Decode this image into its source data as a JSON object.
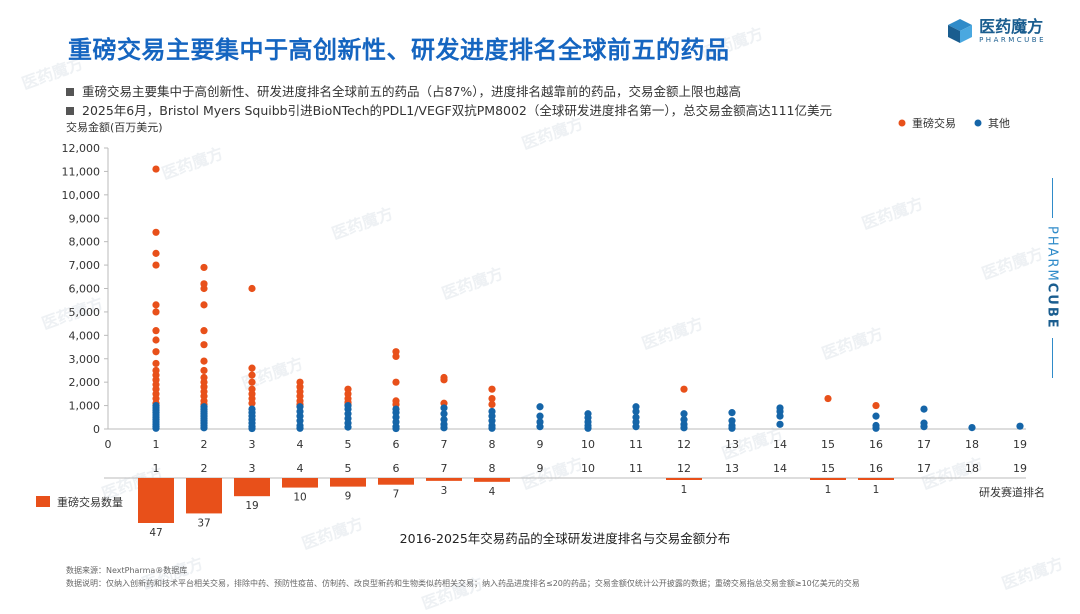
{
  "title": "重磅交易主要集中于高创新性、研发进度排名全球前五的药品",
  "logo": {
    "name": "医药魔方",
    "sub": "PHARMCUBE"
  },
  "bullets": [
    "重磅交易主要集中于高创新性、研发进度排名全球前五的药品（占87%），进度排名越靠前的药品，交易金额上限也越高",
    "2025年6月，Bristol Myers Squibb引进BioNTech的PDL1/VEGF双抗PM8002（全球研发进度排名第一），总交易金额高达111亿美元"
  ],
  "side_brand": {
    "pre": "PHARM",
    "bold": "CUBE"
  },
  "watermark": "医药魔方",
  "footer": {
    "source": "数据来源：NextPharma®数据库",
    "note": "数据说明：仅纳入创新药和技术平台相关交易，排除中药、预防性疫苗、仿制药、改良型新药和生物类似药相关交易；纳入药品进度排名≤20的药品；交易金额仅统计公开披露的数据；重磅交易指总交易金额≥10亿美元的交易"
  },
  "colors": {
    "major": "#e8501a",
    "other": "#1565a8",
    "title": "#1565c0",
    "axis": "#bbbbbb"
  },
  "chart_data": {
    "type": "scatter",
    "title": "2016-2025年交易药品的全球研发进度排名与交易金额分布",
    "ylabel": "交易金额(百万美元)",
    "xlabel": "研发赛道排名",
    "ylim": [
      0,
      12000
    ],
    "yticks": [
      0,
      1000,
      2000,
      3000,
      4000,
      5000,
      6000,
      7000,
      8000,
      9000,
      10000,
      11000,
      12000
    ],
    "ytick_labels": [
      "0",
      "1,000",
      "2,000",
      "3,000",
      "4,000",
      "5,000",
      "6,000",
      "7,000",
      "8,000",
      "9,000",
      "10,000",
      "11,000",
      "12,000"
    ],
    "xlim": [
      0,
      19
    ],
    "xticks": [
      "0",
      "1",
      "2",
      "3",
      "4",
      "5",
      "6",
      "7",
      "8",
      "9",
      "10",
      "11",
      "12",
      "13",
      "14",
      "15",
      "16",
      "17",
      "18",
      "19"
    ],
    "legend": [
      {
        "name": "重磅交易",
        "color": "#e8501a"
      },
      {
        "name": "其他",
        "color": "#1565a8"
      }
    ],
    "scatter_series": [
      {
        "name": "重磅交易",
        "color": "#e8501a",
        "points": [
          [
            1,
            11100
          ],
          [
            1,
            8400
          ],
          [
            1,
            7500
          ],
          [
            1,
            7000
          ],
          [
            1,
            5300
          ],
          [
            1,
            5000
          ],
          [
            1,
            4200
          ],
          [
            1,
            3800
          ],
          [
            1,
            3300
          ],
          [
            1,
            2800
          ],
          [
            1,
            2500
          ],
          [
            1,
            2300
          ],
          [
            1,
            2100
          ],
          [
            1,
            1900
          ],
          [
            1,
            1700
          ],
          [
            1,
            1500
          ],
          [
            1,
            1300
          ],
          [
            1,
            1100
          ],
          [
            2,
            6900
          ],
          [
            2,
            6200
          ],
          [
            2,
            6000
          ],
          [
            2,
            5300
          ],
          [
            2,
            4200
          ],
          [
            2,
            3600
          ],
          [
            2,
            2900
          ],
          [
            2,
            2500
          ],
          [
            2,
            2200
          ],
          [
            2,
            2000
          ],
          [
            2,
            1800
          ],
          [
            2,
            1600
          ],
          [
            2,
            1400
          ],
          [
            2,
            1200
          ],
          [
            2,
            1050
          ],
          [
            3,
            6000
          ],
          [
            3,
            2600
          ],
          [
            3,
            2300
          ],
          [
            3,
            2000
          ],
          [
            3,
            1700
          ],
          [
            3,
            1500
          ],
          [
            3,
            1300
          ],
          [
            3,
            1100
          ],
          [
            4,
            2000
          ],
          [
            4,
            1800
          ],
          [
            4,
            1600
          ],
          [
            4,
            1400
          ],
          [
            4,
            1200
          ],
          [
            4,
            1050
          ],
          [
            5,
            1700
          ],
          [
            5,
            1500
          ],
          [
            5,
            1300
          ],
          [
            5,
            1150
          ],
          [
            5,
            1050
          ],
          [
            6,
            3300
          ],
          [
            6,
            3100
          ],
          [
            6,
            2000
          ],
          [
            6,
            1200
          ],
          [
            6,
            1050
          ],
          [
            7,
            2200
          ],
          [
            7,
            2100
          ],
          [
            7,
            1100
          ],
          [
            8,
            1700
          ],
          [
            8,
            1300
          ],
          [
            8,
            1050
          ],
          [
            12,
            1700
          ],
          [
            15,
            1300
          ],
          [
            16,
            1000
          ]
        ]
      },
      {
        "name": "其他",
        "color": "#1565a8",
        "points": [
          [
            1,
            1000
          ],
          [
            1,
            900
          ],
          [
            1,
            800
          ],
          [
            1,
            700
          ],
          [
            1,
            600
          ],
          [
            1,
            500
          ],
          [
            1,
            400
          ],
          [
            1,
            300
          ],
          [
            1,
            200
          ],
          [
            1,
            100
          ],
          [
            1,
            30
          ],
          [
            2,
            950
          ],
          [
            2,
            850
          ],
          [
            2,
            750
          ],
          [
            2,
            650
          ],
          [
            2,
            550
          ],
          [
            2,
            450
          ],
          [
            2,
            350
          ],
          [
            2,
            250
          ],
          [
            2,
            150
          ],
          [
            2,
            50
          ],
          [
            3,
            850
          ],
          [
            3,
            700
          ],
          [
            3,
            550
          ],
          [
            3,
            400
          ],
          [
            3,
            250
          ],
          [
            3,
            100
          ],
          [
            3,
            20
          ],
          [
            4,
            950
          ],
          [
            4,
            750
          ],
          [
            4,
            550
          ],
          [
            4,
            350
          ],
          [
            4,
            150
          ],
          [
            4,
            30
          ],
          [
            5,
            1000
          ],
          [
            5,
            850
          ],
          [
            5,
            650
          ],
          [
            5,
            450
          ],
          [
            5,
            250
          ],
          [
            5,
            80
          ],
          [
            6,
            850
          ],
          [
            6,
            700
          ],
          [
            6,
            500
          ],
          [
            6,
            300
          ],
          [
            6,
            100
          ],
          [
            6,
            20
          ],
          [
            7,
            900
          ],
          [
            7,
            650
          ],
          [
            7,
            400
          ],
          [
            7,
            200
          ],
          [
            7,
            50
          ],
          [
            8,
            750
          ],
          [
            8,
            550
          ],
          [
            8,
            350
          ],
          [
            8,
            150
          ],
          [
            8,
            30
          ],
          [
            9,
            950
          ],
          [
            9,
            550
          ],
          [
            9,
            300
          ],
          [
            9,
            100
          ],
          [
            10,
            650
          ],
          [
            10,
            480
          ],
          [
            10,
            300
          ],
          [
            10,
            150
          ],
          [
            10,
            30
          ],
          [
            11,
            950
          ],
          [
            11,
            750
          ],
          [
            11,
            500
          ],
          [
            11,
            300
          ],
          [
            11,
            100
          ],
          [
            12,
            650
          ],
          [
            12,
            400
          ],
          [
            12,
            200
          ],
          [
            12,
            50
          ],
          [
            13,
            700
          ],
          [
            13,
            350
          ],
          [
            13,
            150
          ],
          [
            13,
            30
          ],
          [
            14,
            900
          ],
          [
            14,
            750
          ],
          [
            14,
            550
          ],
          [
            14,
            200
          ],
          [
            16,
            550
          ],
          [
            16,
            150
          ],
          [
            16,
            30
          ],
          [
            17,
            850
          ],
          [
            17,
            250
          ],
          [
            17,
            100
          ],
          [
            18,
            60
          ],
          [
            19,
            120
          ]
        ]
      }
    ],
    "bar_series": {
      "name": "重磅交易数量",
      "color": "#e8501a",
      "categories": [
        "1",
        "2",
        "3",
        "4",
        "5",
        "6",
        "7",
        "8",
        "9",
        "10",
        "11",
        "12",
        "13",
        "14",
        "15",
        "16",
        "17",
        "18",
        "19"
      ],
      "values": [
        47,
        37,
        19,
        10,
        9,
        7,
        3,
        4,
        0,
        0,
        0,
        1,
        0,
        0,
        1,
        1,
        0,
        0,
        0
      ],
      "labels": [
        "47",
        "37",
        "19",
        "10",
        "9",
        "7",
        "3",
        "4",
        "",
        "",
        "",
        "1",
        "",
        "",
        "1",
        "1",
        "",
        "",
        ""
      ]
    }
  }
}
